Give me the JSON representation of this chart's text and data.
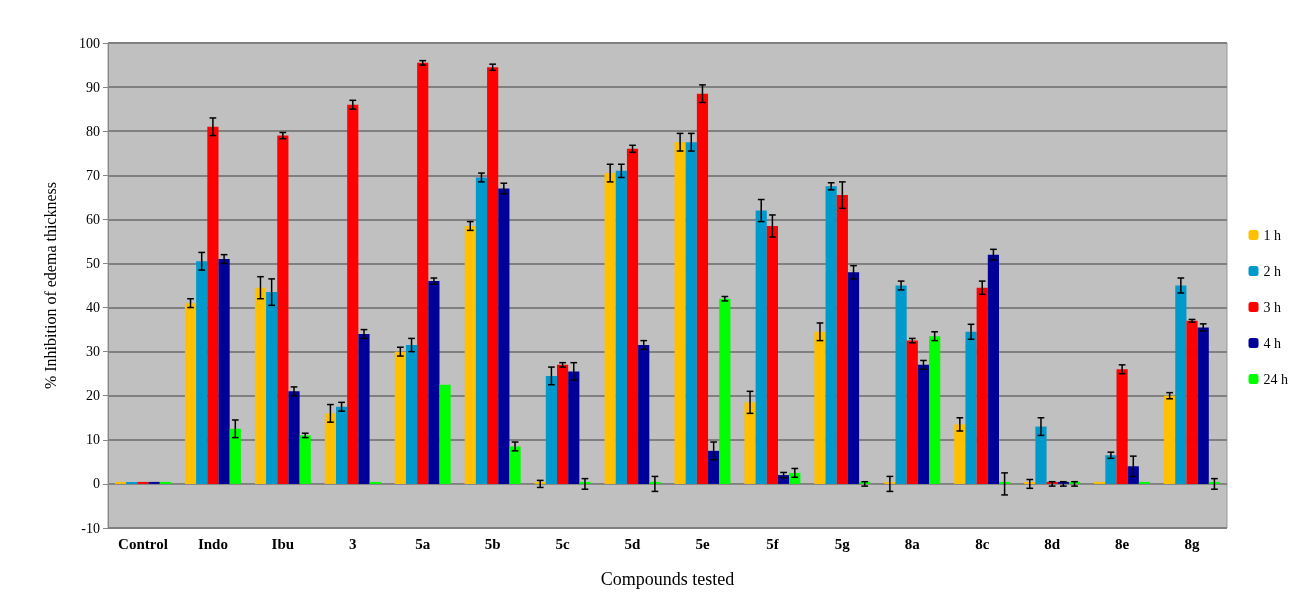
{
  "chart_data": {
    "type": "bar",
    "xlabel": "Compounds tested",
    "ylabel": "% Inhibition of edema thickness",
    "categories": [
      "Control",
      "Indo",
      "Ibu",
      "3",
      "5a",
      "5b",
      "5c",
      "5d",
      "5e",
      "5f",
      "5g",
      "8a",
      "8c",
      "8d",
      "8e",
      "8g"
    ],
    "series": [
      {
        "name": "1 h",
        "color": "#ffc000",
        "values": [
          0,
          41,
          44.5,
          16,
          30,
          58.5,
          0,
          70.5,
          77.5,
          18.5,
          34.5,
          0,
          13.5,
          0,
          0,
          20
        ],
        "errors": [
          null,
          1,
          2.5,
          2,
          1,
          1,
          0.8,
          2,
          2,
          2.5,
          2,
          1.7,
          1.5,
          1,
          null,
          0.7
        ]
      },
      {
        "name": "2 h",
        "color": "#0099cc",
        "values": [
          0,
          50.5,
          43.5,
          17.5,
          31.5,
          69.5,
          24.5,
          71,
          77.5,
          62,
          67.5,
          45,
          34.5,
          13,
          6.5,
          45
        ],
        "errors": [
          null,
          2,
          3,
          1,
          1.5,
          1,
          2,
          1.5,
          2,
          2.5,
          0.8,
          1,
          1.7,
          2,
          0.7,
          1.7
        ]
      },
      {
        "name": "3 h",
        "color": "#ff0000",
        "values": [
          0,
          81,
          79,
          86,
          95.5,
          94.5,
          27,
          76,
          88.5,
          58.5,
          65.5,
          32.5,
          44.5,
          0,
          26,
          37
        ],
        "errors": [
          null,
          2,
          0.7,
          1,
          0.5,
          0.7,
          0.5,
          0.8,
          2,
          2.5,
          3,
          0.5,
          1.5,
          0.5,
          1,
          0.3
        ]
      },
      {
        "name": "4 h",
        "color": "#000099",
        "values": [
          0,
          51,
          21,
          34,
          46,
          67,
          25.5,
          31.5,
          7.5,
          2,
          48,
          27,
          52,
          0,
          4,
          35.5
        ],
        "errors": [
          null,
          1,
          1,
          1,
          0.7,
          1.2,
          2,
          1,
          2,
          0.6,
          1.5,
          1,
          1.2,
          0.5,
          2.3,
          0.8
        ]
      },
      {
        "name": "24 h",
        "color": "#00ff00",
        "values": [
          0,
          12.5,
          11,
          0,
          22.5,
          8.5,
          0,
          0,
          42,
          2.5,
          0,
          33.5,
          0,
          0,
          0,
          0
        ],
        "errors": [
          null,
          2,
          0.5,
          null,
          null,
          1,
          1.2,
          1.7,
          0.5,
          1,
          0.5,
          1,
          2.5,
          0.5,
          null,
          1.2
        ]
      }
    ],
    "ylim": [
      -10,
      100
    ],
    "yticks": [
      -10,
      0,
      10,
      20,
      30,
      40,
      50,
      60,
      70,
      80,
      90,
      100
    ],
    "grid": "y",
    "legend": "right"
  }
}
